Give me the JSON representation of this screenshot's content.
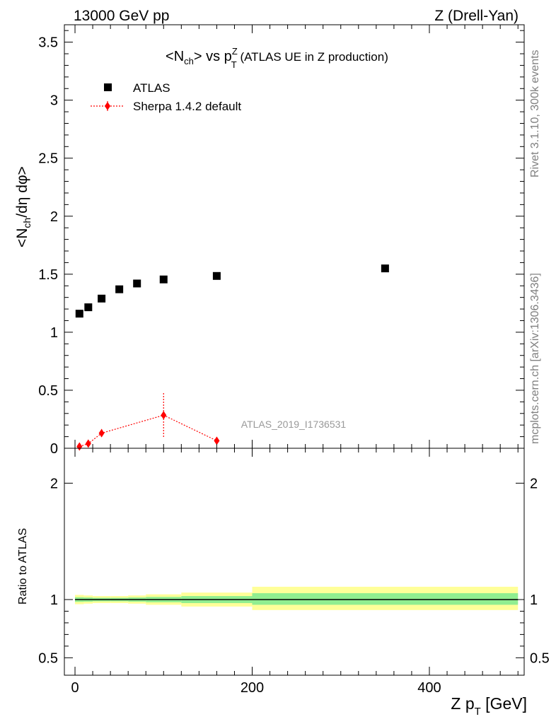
{
  "header": {
    "left": "13000 GeV pp",
    "right": "Z (Drell-Yan)"
  },
  "side_labels": {
    "rivet": "Rivet 3.1.10,  300k events",
    "mcplots": "mcplots.cern.ch [arXiv:1306.3436]"
  },
  "chart_data": [
    {
      "type": "scatter",
      "title": {
        "n": "N",
        "ch": "ch",
        "vs": " vs p",
        "sup": "Z",
        "sub": "T",
        "rest": " (ATLAS UE in Z production)"
      },
      "ylabel": {
        "lt": "<N",
        "ch": "ch",
        "rest": "/dη dφ>"
      },
      "xlim": [
        -12,
        507
      ],
      "ylim": [
        0,
        3.65
      ],
      "yticks": [
        {
          "v": 0,
          "label": "0"
        },
        {
          "v": 0.5,
          "label": "0.5"
        },
        {
          "v": 1,
          "label": "1"
        },
        {
          "v": 1.5,
          "label": "1.5"
        },
        {
          "v": 2,
          "label": "2"
        },
        {
          "v": 2.5,
          "label": "2.5"
        },
        {
          "v": 3,
          "label": "3"
        },
        {
          "v": 3.5,
          "label": "3.5"
        }
      ],
      "legend": {
        "placement": "top-left",
        "entries": [
          "ATLAS",
          "Sherpa 1.4.2 default"
        ]
      },
      "watermark": "ATLAS_2019_I1736531",
      "series": [
        {
          "name": "ATLAS",
          "color": "#000000",
          "marker": "square",
          "x": [
            5,
            15,
            30,
            50,
            70,
            100,
            160,
            350
          ],
          "y": [
            1.16,
            1.215,
            1.29,
            1.37,
            1.42,
            1.455,
            1.485,
            1.55
          ]
        },
        {
          "name": "Sherpa 1.4.2 default",
          "color": "#ff0000",
          "marker": "diamond",
          "line": "dotted",
          "x": [
            5,
            15,
            30,
            100,
            160
          ],
          "y": [
            0.015,
            0.04,
            0.13,
            0.285,
            0.065
          ],
          "yerr": [
            0.01,
            0.015,
            0.035,
            0.19,
            0.025
          ]
        }
      ]
    },
    {
      "type": "line",
      "ylabel": "Ratio to ATLAS",
      "xlabel": {
        "main": "Z p",
        "sub": "T",
        "unit": " [GeV]"
      },
      "xlim": [
        -12,
        507
      ],
      "ylim": [
        0.35,
        2.3
      ],
      "xticks": [
        {
          "v": 0,
          "label": "0"
        },
        {
          "v": 200,
          "label": "200"
        },
        {
          "v": 400,
          "label": "400"
        }
      ],
      "yticks": [
        {
          "v": 0.5,
          "label": "0.5"
        },
        {
          "v": 1,
          "label": "1"
        },
        {
          "v": 2,
          "label": "2"
        }
      ],
      "reference": 1,
      "bands": [
        {
          "x0": 0,
          "x1": 10,
          "yellow": [
            0.96,
            1.04
          ],
          "green": [
            0.98,
            1.02
          ]
        },
        {
          "x0": 10,
          "x1": 20,
          "yellow": [
            0.965,
            1.035
          ],
          "green": [
            0.982,
            1.018
          ]
        },
        {
          "x0": 20,
          "x1": 40,
          "yellow": [
            0.97,
            1.03
          ],
          "green": [
            0.985,
            1.015
          ]
        },
        {
          "x0": 40,
          "x1": 60,
          "yellow": [
            0.97,
            1.03
          ],
          "green": [
            0.985,
            1.015
          ]
        },
        {
          "x0": 60,
          "x1": 80,
          "yellow": [
            0.965,
            1.035
          ],
          "green": [
            0.982,
            1.018
          ]
        },
        {
          "x0": 80,
          "x1": 120,
          "yellow": [
            0.955,
            1.045
          ],
          "green": [
            0.977,
            1.023
          ]
        },
        {
          "x0": 120,
          "x1": 200,
          "yellow": [
            0.94,
            1.06
          ],
          "green": [
            0.97,
            1.03
          ]
        },
        {
          "x0": 200,
          "x1": 500,
          "yellow": [
            0.91,
            1.11
          ],
          "green": [
            0.955,
            1.055
          ]
        }
      ],
      "band_colors": {
        "yellow": "#ffff99",
        "green": "#90ee90"
      }
    }
  ]
}
